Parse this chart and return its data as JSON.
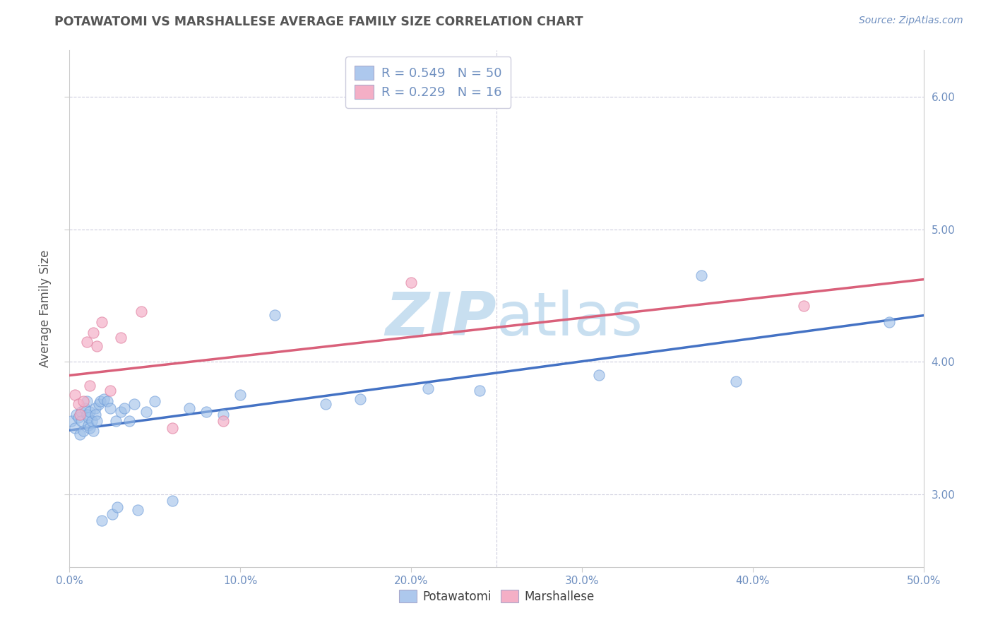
{
  "title": "POTAWATOMI VS MARSHALLESE AVERAGE FAMILY SIZE CORRELATION CHART",
  "source": "Source: ZipAtlas.com",
  "ylabel": "Average Family Size",
  "xlim": [
    0.0,
    0.5
  ],
  "ylim": [
    2.45,
    6.35
  ],
  "xtick_labels": [
    "0.0%",
    "10.0%",
    "20.0%",
    "30.0%",
    "40.0%",
    "50.0%"
  ],
  "ytick_labels": [
    "3.00",
    "4.00",
    "5.00",
    "6.00"
  ],
  "ytick_values": [
    3.0,
    4.0,
    5.0,
    6.0
  ],
  "xtick_values": [
    0.0,
    0.1,
    0.2,
    0.3,
    0.4,
    0.5
  ],
  "legend1_label": "R = 0.549   N = 50",
  "legend2_label": "R = 0.229   N = 16",
  "legend1_color": "#adc8ed",
  "legend2_color": "#f4afc6",
  "blue_scatter_color": "#9dbfe8",
  "pink_scatter_color": "#f4b0c8",
  "blue_line_color": "#4472c4",
  "pink_line_color": "#d9607a",
  "watermark_zip_color": "#c8dff0",
  "watermark_atlas_color": "#c8dff0",
  "background_color": "#ffffff",
  "grid_color": "#ccccdd",
  "title_color": "#555555",
  "axis_color": "#7090c0",
  "potawatomi_x": [
    0.001,
    0.003,
    0.004,
    0.005,
    0.006,
    0.007,
    0.007,
    0.008,
    0.009,
    0.01,
    0.01,
    0.011,
    0.011,
    0.012,
    0.012,
    0.013,
    0.014,
    0.015,
    0.015,
    0.016,
    0.017,
    0.018,
    0.019,
    0.02,
    0.022,
    0.024,
    0.025,
    0.027,
    0.028,
    0.03,
    0.032,
    0.035,
    0.038,
    0.04,
    0.045,
    0.05,
    0.06,
    0.07,
    0.08,
    0.09,
    0.1,
    0.12,
    0.15,
    0.17,
    0.21,
    0.24,
    0.31,
    0.37,
    0.39,
    0.48
  ],
  "potawatomi_y": [
    3.55,
    3.5,
    3.6,
    3.58,
    3.45,
    3.62,
    3.55,
    3.48,
    3.65,
    3.7,
    3.6,
    3.52,
    3.58,
    3.5,
    3.62,
    3.55,
    3.48,
    3.65,
    3.6,
    3.55,
    3.68,
    3.7,
    2.8,
    3.72,
    3.7,
    3.65,
    2.85,
    3.55,
    2.9,
    3.62,
    3.65,
    3.55,
    3.68,
    2.88,
    3.62,
    3.7,
    2.95,
    3.65,
    3.62,
    3.6,
    3.75,
    4.35,
    3.68,
    3.72,
    3.8,
    3.78,
    3.9,
    4.65,
    3.85,
    4.3
  ],
  "marshallese_x": [
    0.003,
    0.005,
    0.006,
    0.008,
    0.01,
    0.012,
    0.014,
    0.016,
    0.019,
    0.024,
    0.03,
    0.042,
    0.06,
    0.09,
    0.2,
    0.43
  ],
  "marshallese_y": [
    3.75,
    3.68,
    3.6,
    3.7,
    4.15,
    3.82,
    4.22,
    4.12,
    4.3,
    3.78,
    4.18,
    4.38,
    3.5,
    3.55,
    4.6,
    4.42
  ]
}
